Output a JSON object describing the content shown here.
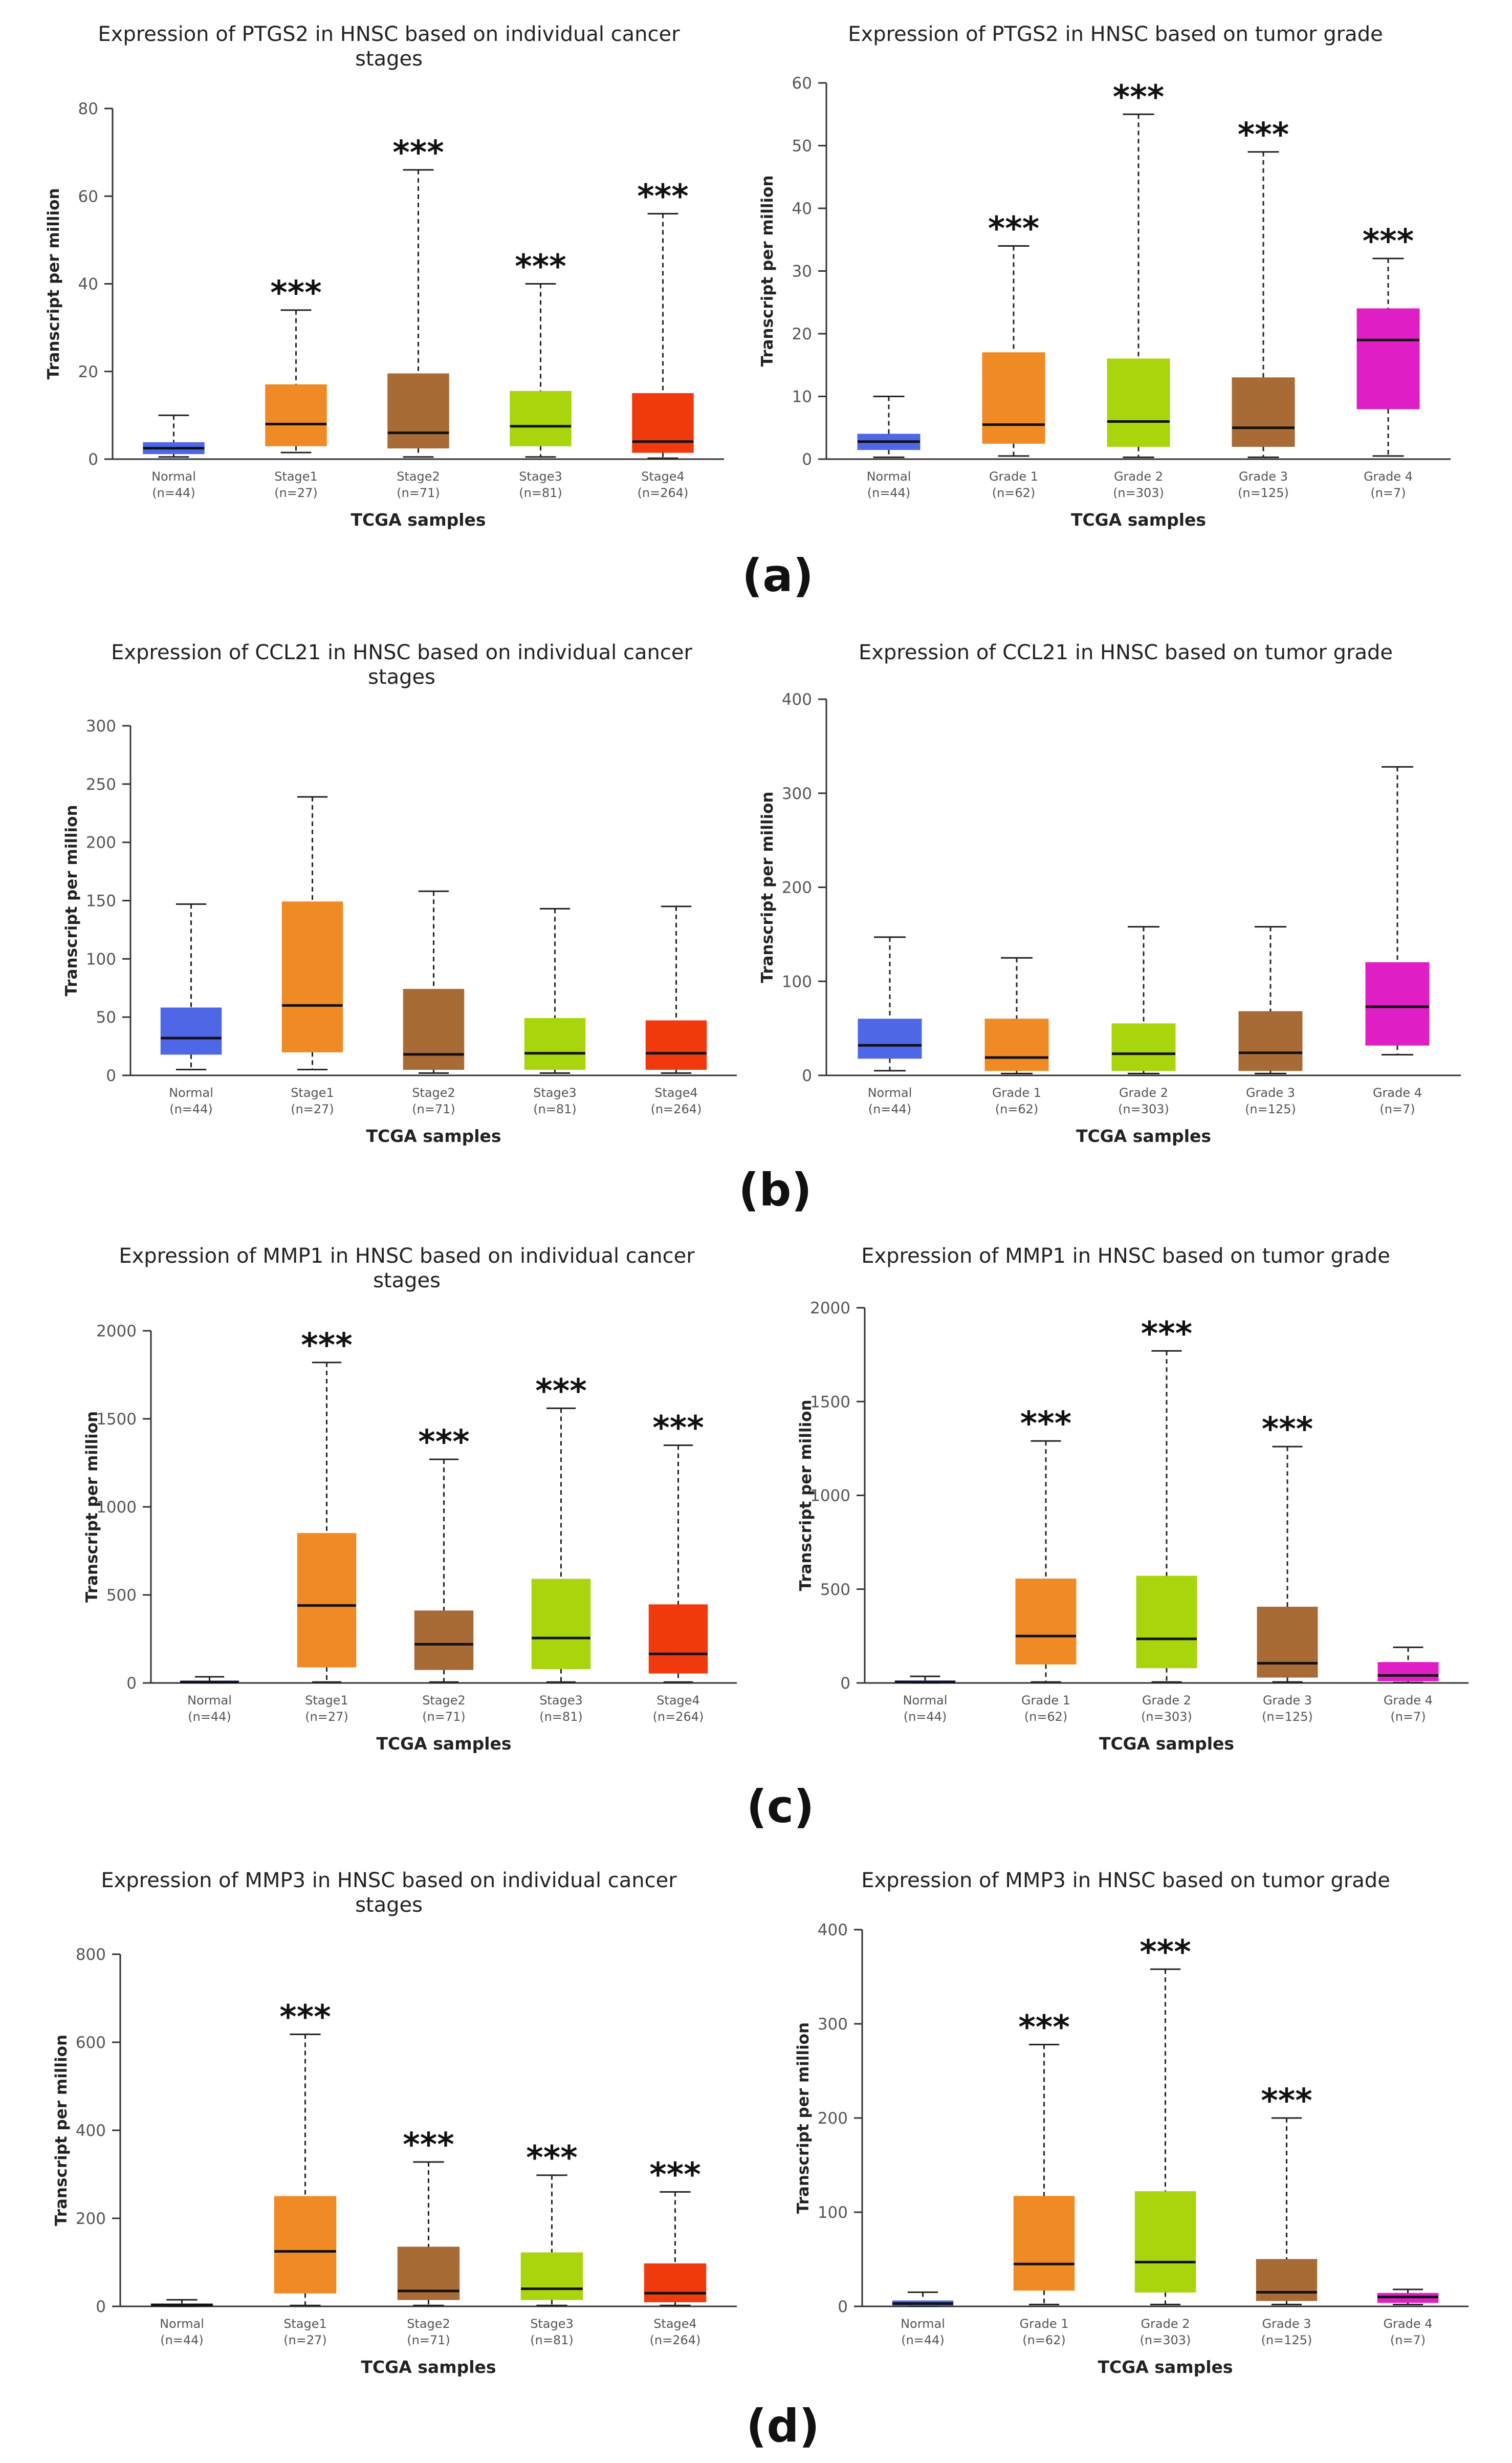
{
  "colors": {
    "normal": "#4e67e6",
    "stage1": "#f08a24",
    "stage2": "#a86b36",
    "stage3": "#a8d50c",
    "stage4": "#f03a0e",
    "grade1": "#f08a24",
    "grade2": "#a8d50c",
    "grade3": "#a86b36",
    "grade4": "#e01ec6"
  },
  "panels": [
    {
      "label": "(a)"
    },
    {
      "label": "(b)"
    },
    {
      "label": "(c)"
    },
    {
      "label": "(d)"
    }
  ],
  "chart_data": [
    {
      "type": "boxplot",
      "title": "Expression of PTGS2 in HNSC based on individual cancer stages",
      "title_lines": [
        "Expression of PTGS2 in HNSC based on individual cancer",
        "stages"
      ],
      "xlabel": "TCGA samples",
      "ylabel": "Transcript per million",
      "ylim": [
        0,
        80
      ],
      "yticks": [
        0,
        20,
        40,
        60,
        80
      ],
      "categories": [
        "Normal",
        "Stage1",
        "Stage2",
        "Stage3",
        "Stage4"
      ],
      "sample_sizes": [
        "(n=44)",
        "(n=27)",
        "(n=71)",
        "(n=81)",
        "(n=264)"
      ],
      "colors": [
        "normal",
        "stage1",
        "stage2",
        "stage3",
        "stage4"
      ],
      "boxes": [
        {
          "min": 0.5,
          "q1": 1.2,
          "median": 2.5,
          "q3": 3.8,
          "max": 10
        },
        {
          "min": 1.5,
          "q1": 3.0,
          "median": 8.0,
          "q3": 17.0,
          "max": 34
        },
        {
          "min": 0.5,
          "q1": 2.5,
          "median": 6.0,
          "q3": 19.5,
          "max": 66
        },
        {
          "min": 0.5,
          "q1": 3.0,
          "median": 7.5,
          "q3": 15.5,
          "max": 40
        },
        {
          "min": 0.2,
          "q1": 1.5,
          "median": 4.0,
          "q3": 15.0,
          "max": 56
        }
      ],
      "significance": [
        "",
        "***",
        "***",
        "***",
        "***"
      ]
    },
    {
      "type": "boxplot",
      "title": "Expression of PTGS2 in HNSC based on tumor grade",
      "title_lines": [
        "Expression of PTGS2 in HNSC based on tumor grade"
      ],
      "xlabel": "TCGA samples",
      "ylabel": "Transcript per million",
      "ylim": [
        0,
        60
      ],
      "yticks": [
        0,
        10,
        20,
        30,
        40,
        50,
        60
      ],
      "categories": [
        "Normal",
        "Grade 1",
        "Grade 2",
        "Grade 3",
        "Grade 4"
      ],
      "sample_sizes": [
        "(n=44)",
        "(n=62)",
        "(n=303)",
        "(n=125)",
        "(n=7)"
      ],
      "colors": [
        "normal",
        "grade1",
        "grade2",
        "grade3",
        "grade4"
      ],
      "boxes": [
        {
          "min": 0.3,
          "q1": 1.5,
          "median": 2.8,
          "q3": 4.0,
          "max": 10
        },
        {
          "min": 0.5,
          "q1": 2.5,
          "median": 5.5,
          "q3": 17.0,
          "max": 34
        },
        {
          "min": 0.3,
          "q1": 2.0,
          "median": 6.0,
          "q3": 16.0,
          "max": 55
        },
        {
          "min": 0.3,
          "q1": 2.0,
          "median": 5.0,
          "q3": 13.0,
          "max": 49
        },
        {
          "min": 0.5,
          "q1": 8.0,
          "median": 19.0,
          "q3": 24.0,
          "max": 32
        }
      ],
      "significance": [
        "",
        "***",
        "***",
        "***",
        "***"
      ]
    },
    {
      "type": "boxplot",
      "title": "Expression of CCL21 in HNSC based on individual cancer stages",
      "title_lines": [
        "Expression of CCL21 in HNSC based on individual cancer",
        "stages"
      ],
      "xlabel": "TCGA samples",
      "ylabel": "Transcript per million",
      "ylim": [
        0,
        300
      ],
      "yticks": [
        0,
        50,
        100,
        150,
        200,
        250,
        300
      ],
      "categories": [
        "Normal",
        "Stage1",
        "Stage2",
        "Stage3",
        "Stage4"
      ],
      "sample_sizes": [
        "(n=44)",
        "(n=27)",
        "(n=71)",
        "(n=81)",
        "(n=264)"
      ],
      "colors": [
        "normal",
        "stage1",
        "stage2",
        "stage3",
        "stage4"
      ],
      "boxes": [
        {
          "min": 5,
          "q1": 18,
          "median": 32,
          "q3": 58,
          "max": 147
        },
        {
          "min": 5,
          "q1": 20,
          "median": 60,
          "q3": 149,
          "max": 239
        },
        {
          "min": 2,
          "q1": 5,
          "median": 18,
          "q3": 74,
          "max": 158
        },
        {
          "min": 2,
          "q1": 5,
          "median": 19,
          "q3": 49,
          "max": 143
        },
        {
          "min": 2,
          "q1": 5,
          "median": 19,
          "q3": 47,
          "max": 145
        }
      ],
      "significance": [
        "",
        "",
        "",
        "",
        ""
      ]
    },
    {
      "type": "boxplot",
      "title": "Expression of CCL21 in HNSC based on tumor grade",
      "title_lines": [
        "Expression of CCL21 in HNSC based on tumor grade"
      ],
      "xlabel": "TCGA samples",
      "ylabel": "Transcript per million",
      "ylim": [
        0,
        400
      ],
      "yticks": [
        0,
        100,
        200,
        300,
        400
      ],
      "categories": [
        "Normal",
        "Grade 1",
        "Grade 2",
        "Grade 3",
        "Grade 4"
      ],
      "sample_sizes": [
        "(n=44)",
        "(n=62)",
        "(n=303)",
        "(n=125)",
        "(n=7)"
      ],
      "colors": [
        "normal",
        "grade1",
        "grade2",
        "grade3",
        "grade4"
      ],
      "boxes": [
        {
          "min": 5,
          "q1": 18,
          "median": 32,
          "q3": 60,
          "max": 147
        },
        {
          "min": 2,
          "q1": 5,
          "median": 19,
          "q3": 60,
          "max": 125
        },
        {
          "min": 2,
          "q1": 5,
          "median": 23,
          "q3": 55,
          "max": 158
        },
        {
          "min": 2,
          "q1": 5,
          "median": 24,
          "q3": 68,
          "max": 158
        },
        {
          "min": 22,
          "q1": 32,
          "median": 73,
          "q3": 120,
          "max": 328
        }
      ],
      "significance": [
        "",
        "",
        "",
        "",
        ""
      ]
    },
    {
      "type": "boxplot",
      "title": "Expression of MMP1 in HNSC based on individual cancer stages",
      "title_lines": [
        "Expression of MMP1 in HNSC based on individual cancer",
        "stages"
      ],
      "xlabel": "TCGA samples",
      "ylabel": "Transcript per million",
      "ylim": [
        0,
        2000
      ],
      "yticks": [
        0,
        500,
        1000,
        1500,
        2000
      ],
      "categories": [
        "Normal",
        "Stage1",
        "Stage2",
        "Stage3",
        "Stage4"
      ],
      "sample_sizes": [
        "(n=44)",
        "(n=27)",
        "(n=71)",
        "(n=81)",
        "(n=264)"
      ],
      "colors": [
        "normal",
        "stage1",
        "stage2",
        "stage3",
        "stage4"
      ],
      "boxes": [
        {
          "min": 0,
          "q1": 2,
          "median": 5,
          "q3": 12,
          "max": 35
        },
        {
          "min": 5,
          "q1": 90,
          "median": 440,
          "q3": 850,
          "max": 1820
        },
        {
          "min": 5,
          "q1": 75,
          "median": 220,
          "q3": 410,
          "max": 1270
        },
        {
          "min": 5,
          "q1": 80,
          "median": 255,
          "q3": 590,
          "max": 1560
        },
        {
          "min": 5,
          "q1": 55,
          "median": 165,
          "q3": 445,
          "max": 1350
        }
      ],
      "significance": [
        "",
        "***",
        "***",
        "***",
        "***"
      ]
    },
    {
      "type": "boxplot",
      "title": "Expression of MMP1 in HNSC based on tumor grade",
      "title_lines": [
        "Expression of MMP1 in HNSC based on tumor grade"
      ],
      "xlabel": "TCGA samples",
      "ylabel": "Transcript per million",
      "ylim": [
        0,
        2000
      ],
      "yticks": [
        0,
        500,
        1000,
        1500,
        2000
      ],
      "categories": [
        "Normal",
        "Grade 1",
        "Grade 2",
        "Grade 3",
        "Grade 4"
      ],
      "sample_sizes": [
        "(n=44)",
        "(n=62)",
        "(n=303)",
        "(n=125)",
        "(n=7)"
      ],
      "colors": [
        "normal",
        "grade1",
        "grade2",
        "grade3",
        "grade4"
      ],
      "boxes": [
        {
          "min": 0,
          "q1": 2,
          "median": 5,
          "q3": 12,
          "max": 35
        },
        {
          "min": 5,
          "q1": 100,
          "median": 250,
          "q3": 555,
          "max": 1290
        },
        {
          "min": 5,
          "q1": 80,
          "median": 235,
          "q3": 570,
          "max": 1770
        },
        {
          "min": 5,
          "q1": 30,
          "median": 105,
          "q3": 405,
          "max": 1260
        },
        {
          "min": 2,
          "q1": 10,
          "median": 40,
          "q3": 110,
          "max": 190
        }
      ],
      "significance": [
        "",
        "***",
        "***",
        "***",
        ""
      ]
    },
    {
      "type": "boxplot",
      "title": "Expression of MMP3 in HNSC based on individual cancer stages",
      "title_lines": [
        "Expression of MMP3 in HNSC based on individual cancer",
        "stages"
      ],
      "xlabel": "TCGA samples",
      "ylabel": "Transcript per million",
      "ylim": [
        0,
        800
      ],
      "yticks": [
        0,
        200,
        400,
        600,
        800
      ],
      "categories": [
        "Normal",
        "Stage1",
        "Stage2",
        "Stage3",
        "Stage4"
      ],
      "sample_sizes": [
        "(n=44)",
        "(n=27)",
        "(n=71)",
        "(n=81)",
        "(n=264)"
      ],
      "colors": [
        "normal",
        "stage1",
        "stage2",
        "stage3",
        "stage4"
      ],
      "boxes": [
        {
          "min": 0,
          "q1": 1,
          "median": 3,
          "q3": 6,
          "max": 15
        },
        {
          "min": 2,
          "q1": 30,
          "median": 125,
          "q3": 250,
          "max": 618
        },
        {
          "min": 2,
          "q1": 15,
          "median": 35,
          "q3": 135,
          "max": 328
        },
        {
          "min": 2,
          "q1": 15,
          "median": 40,
          "q3": 122,
          "max": 298
        },
        {
          "min": 2,
          "q1": 10,
          "median": 30,
          "q3": 97,
          "max": 260
        }
      ],
      "significance": [
        "",
        "***",
        "***",
        "***",
        "***"
      ]
    },
    {
      "type": "boxplot",
      "title": "Expression of MMP3 in HNSC based on tumor grade",
      "title_lines": [
        "Expression of MMP3 in HNSC based on tumor grade"
      ],
      "xlabel": "TCGA samples",
      "ylabel": "Transcript per million",
      "ylim": [
        0,
        400
      ],
      "yticks": [
        0,
        100,
        200,
        300,
        400
      ],
      "categories": [
        "Normal",
        "Grade 1",
        "Grade 2",
        "Grade 3",
        "Grade 4"
      ],
      "sample_sizes": [
        "(n=44)",
        "(n=62)",
        "(n=303)",
        "(n=125)",
        "(n=7)"
      ],
      "colors": [
        "normal",
        "grade1",
        "grade2",
        "grade3",
        "grade4"
      ],
      "boxes": [
        {
          "min": 0,
          "q1": 1,
          "median": 3,
          "q3": 6,
          "max": 15
        },
        {
          "min": 2,
          "q1": 17,
          "median": 45,
          "q3": 117,
          "max": 278
        },
        {
          "min": 2,
          "q1": 15,
          "median": 47,
          "q3": 122,
          "max": 358
        },
        {
          "min": 2,
          "q1": 6,
          "median": 15,
          "q3": 50,
          "max": 200
        },
        {
          "min": 2,
          "q1": 4,
          "median": 10,
          "q3": 14,
          "max": 18
        }
      ],
      "significance": [
        "",
        "***",
        "***",
        "***",
        ""
      ]
    }
  ]
}
